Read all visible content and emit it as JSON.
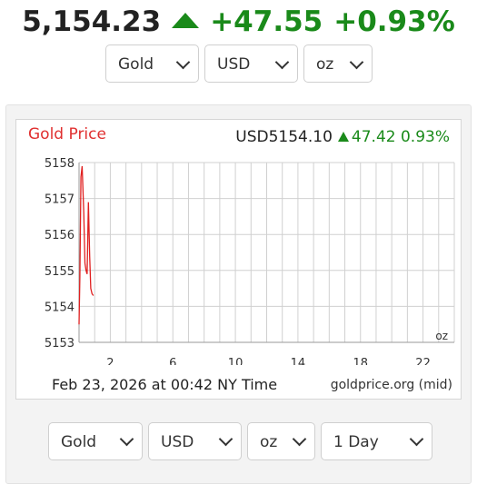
{
  "header": {
    "price": "5,154.23",
    "change": "+47.55",
    "change_pct": "+0.93%",
    "direction_icon": "up-triangle-icon",
    "up_color": "#1a8a1a"
  },
  "top_selectors": {
    "metal": "Gold",
    "currency": "USD",
    "unit": "oz"
  },
  "chart_widget": {
    "title": "Gold Price",
    "quote_price": "USD5154.10",
    "quote_change": "47.42",
    "quote_change_pct": "0.93%",
    "unit_label": "oz",
    "timestamp": "Feb 23, 2026 at 00:42 NY Time",
    "source": "goldprice.org (mid)",
    "title_color": "#e03030"
  },
  "chart_data": {
    "type": "line",
    "title": "Gold Price",
    "xlabel": "",
    "ylabel": "",
    "xlim": [
      0,
      24
    ],
    "ylim": [
      5153,
      5158
    ],
    "x_ticks": [
      2,
      6,
      10,
      14,
      18,
      22
    ],
    "y_ticks": [
      5153,
      5154,
      5155,
      5156,
      5157,
      5158
    ],
    "grid": true,
    "series": [
      {
        "color": "#e02020",
        "x": [
          0.0,
          0.05,
          0.12,
          0.2,
          0.3,
          0.38,
          0.45,
          0.52,
          0.6,
          0.68,
          0.75,
          0.83,
          0.92
        ],
        "y": [
          5153.5,
          5154.8,
          5157.6,
          5157.9,
          5156.6,
          5155.2,
          5155.0,
          5154.9,
          5156.9,
          5155.4,
          5154.5,
          5154.35,
          5154.3
        ]
      }
    ]
  },
  "bottom_selectors": {
    "metal": "Gold",
    "currency": "USD",
    "unit": "oz",
    "range": "1 Day"
  }
}
